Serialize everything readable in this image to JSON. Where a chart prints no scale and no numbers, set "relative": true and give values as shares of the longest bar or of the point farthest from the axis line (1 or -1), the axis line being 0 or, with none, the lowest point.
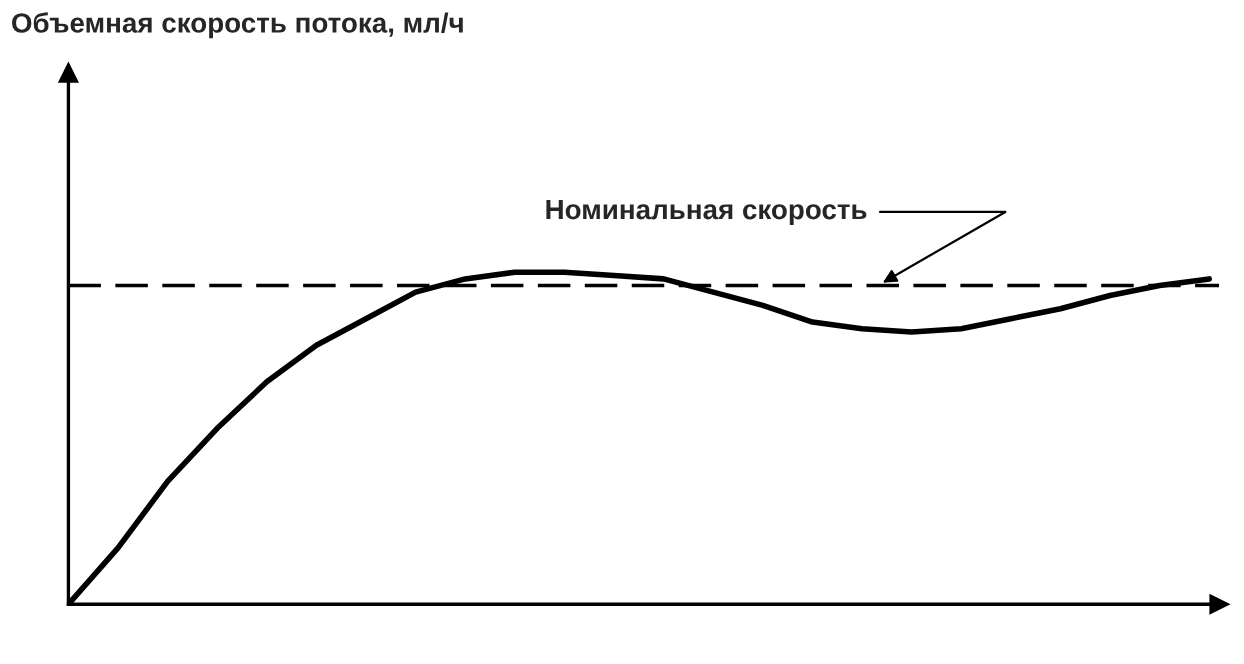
{
  "chart_data": {
    "type": "line",
    "relative": true,
    "annotations": [
      "Объемная скорость потока, мл/ч"
    ],
    "categories": [
      null,
      null,
      null,
      null,
      null,
      null,
      null,
      null,
      null,
      null,
      null,
      null,
      null,
      null,
      null,
      null,
      null,
      null,
      null,
      null,
      null,
      null,
      null,
      null
    ],
    "series": [
      {
        "color": "#000000",
        "values": [
          0,
          0.17,
          0.37,
          0.53,
          0.67,
          0.78,
          0.86,
          0.94,
          0.98,
          1.0,
          1.0,
          0.99,
          0.98,
          0.94,
          0.9,
          0.85,
          0.83,
          0.82,
          0.83,
          0.86,
          0.89,
          0.93,
          0.96,
          0.98
        ]
      }
    ],
    "ref_lines": [
      {
        "axis": "y",
        "value": 0.96,
        "label": "Номинальная скорость",
        "color": "#000000",
        "line_style": "dashed"
      }
    ],
    "marker": "none",
    "line_style": "solid"
  }
}
